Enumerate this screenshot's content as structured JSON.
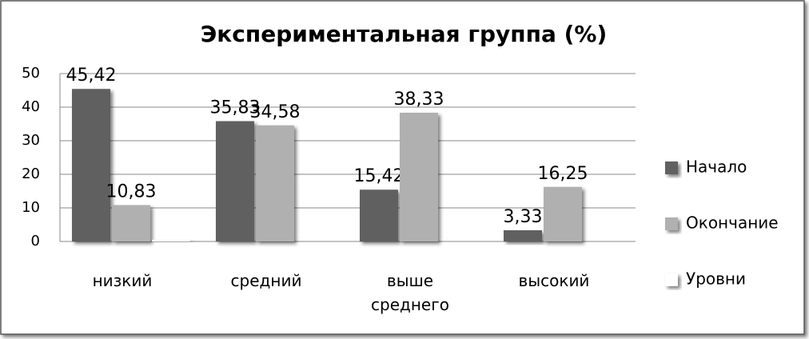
{
  "chart_data": {
    "type": "bar",
    "title": "Экспериментальная группа (%)",
    "categories": [
      "низкий",
      "средний",
      "выше среднего",
      "высокий"
    ],
    "series": [
      {
        "name": "Начало",
        "color": "#606060",
        "values": [
          45.42,
          35.83,
          15.42,
          3.33
        ],
        "value_labels": [
          "45,42",
          "35,83",
          "15,42",
          "3,33"
        ]
      },
      {
        "name": "Окончание",
        "color": "#b0b0b0",
        "values": [
          10.83,
          34.58,
          38.33,
          16.25
        ],
        "value_labels": [
          "10,83",
          "34,58",
          "38,33",
          "16,25"
        ]
      },
      {
        "name": "Уровни",
        "color": "#ffffff",
        "values": [
          0.5,
          null,
          null,
          null
        ]
      }
    ],
    "ylim": [
      0,
      50
    ],
    "yticks": [
      0,
      10,
      20,
      30,
      40,
      50
    ],
    "grid": true,
    "legend": "right"
  }
}
